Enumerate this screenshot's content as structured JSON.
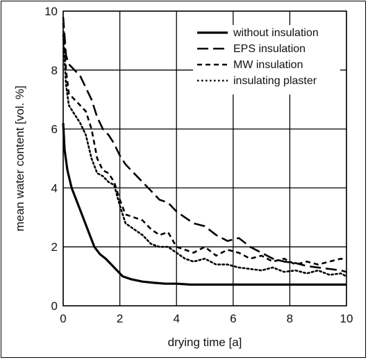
{
  "chart_data": {
    "type": "line",
    "title": "",
    "xlabel": "drying time [a]",
    "ylabel": "mean water content [vol. %]",
    "xlim": [
      0,
      10
    ],
    "ylim": [
      0,
      10
    ],
    "xticks": [
      "0",
      "2",
      "4",
      "6",
      "8",
      "10"
    ],
    "yticks": [
      "0",
      "2",
      "4",
      "6",
      "8",
      "10"
    ],
    "grid": true,
    "legend_position": "top-right",
    "series": [
      {
        "name": "without insulation",
        "style": "solid",
        "x": [
          0,
          0.05,
          0.15,
          0.3,
          0.5,
          0.7,
          0.9,
          1.1,
          1.3,
          1.5,
          1.7,
          1.9,
          2.1,
          2.4,
          2.8,
          3.2,
          3.6,
          4,
          4.5,
          5,
          6,
          7,
          8,
          9,
          10
        ],
        "y": [
          6.2,
          5.3,
          4.6,
          4.0,
          3.5,
          3.0,
          2.5,
          2.0,
          1.75,
          1.6,
          1.4,
          1.2,
          1.0,
          0.9,
          0.82,
          0.78,
          0.75,
          0.75,
          0.72,
          0.72,
          0.72,
          0.72,
          0.72,
          0.72,
          0.72
        ]
      },
      {
        "name": "EPS insulation",
        "style": "dash",
        "x": [
          0,
          0.1,
          0.2,
          0.4,
          0.6,
          0.8,
          1.0,
          1.2,
          1.4,
          1.6,
          1.8,
          2.0,
          2.2,
          2.5,
          2.8,
          3.1,
          3.4,
          3.7,
          4.0,
          4.3,
          4.6,
          5.0,
          5.4,
          5.8,
          6.2,
          6.6,
          7.0,
          7.4,
          7.8,
          8.2,
          8.6,
          9.0,
          9.4,
          9.8,
          10
        ],
        "y": [
          9.8,
          8.5,
          8.2,
          8.0,
          7.8,
          7.4,
          7.0,
          6.4,
          6.0,
          5.8,
          5.5,
          5.1,
          4.8,
          4.5,
          4.2,
          3.9,
          3.6,
          3.5,
          3.2,
          3.0,
          2.8,
          2.7,
          2.4,
          2.2,
          2.3,
          2.0,
          1.8,
          1.6,
          1.5,
          1.45,
          1.35,
          1.3,
          1.25,
          1.2,
          1.15
        ]
      },
      {
        "name": "MW insulation",
        "style": "shortdash",
        "x": [
          0,
          0.1,
          0.2,
          0.4,
          0.6,
          0.8,
          1.0,
          1.2,
          1.4,
          1.6,
          1.8,
          2.0,
          2.2,
          2.5,
          2.8,
          3.1,
          3.4,
          3.7,
          4.0,
          4.3,
          4.6,
          5.0,
          5.4,
          5.8,
          6.2,
          6.6,
          7.0,
          7.4,
          7.8,
          8.2,
          8.6,
          9.0,
          9.4,
          9.8,
          10
        ],
        "y": [
          9.6,
          8.0,
          7.2,
          7.0,
          6.8,
          6.6,
          6.0,
          5.0,
          4.6,
          4.5,
          4.2,
          3.6,
          3.1,
          3.0,
          2.9,
          2.6,
          2.4,
          2.5,
          2.0,
          1.9,
          1.8,
          2.0,
          1.7,
          1.9,
          1.8,
          1.6,
          1.7,
          1.5,
          1.6,
          1.4,
          1.5,
          1.4,
          1.5,
          1.6,
          1.55
        ]
      },
      {
        "name": "insulating plaster",
        "style": "dot",
        "x": [
          0,
          0.1,
          0.2,
          0.4,
          0.6,
          0.8,
          1.0,
          1.2,
          1.4,
          1.6,
          1.8,
          2.0,
          2.2,
          2.5,
          2.8,
          3.1,
          3.4,
          3.7,
          4.0,
          4.3,
          4.6,
          5.0,
          5.4,
          5.8,
          6.2,
          6.6,
          7.0,
          7.4,
          7.8,
          8.2,
          8.6,
          9.0,
          9.4,
          9.8,
          10
        ],
        "y": [
          9.2,
          7.5,
          6.8,
          6.5,
          6.2,
          5.8,
          5.0,
          4.5,
          4.4,
          4.2,
          4.1,
          3.4,
          2.8,
          2.6,
          2.4,
          2.1,
          2.0,
          2.0,
          1.8,
          1.6,
          1.5,
          1.6,
          1.4,
          1.4,
          1.3,
          1.25,
          1.2,
          1.3,
          1.15,
          1.2,
          1.1,
          1.2,
          1.05,
          1.1,
          1.0
        ]
      }
    ]
  },
  "colors": {
    "ink": "#000000",
    "grid": "#000000",
    "background": "#ffffff"
  }
}
